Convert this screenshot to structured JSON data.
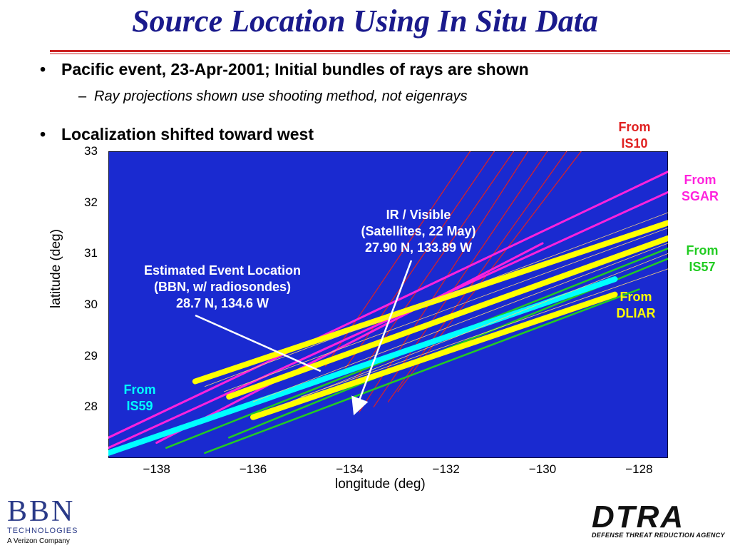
{
  "title": "Source Location Using In Situ Data",
  "bullets": {
    "b1": "Pacific event, 23-Apr-2001; Initial bundles of rays are shown",
    "b1_sub": "Ray projections shown use shooting method, not eigenrays",
    "b2": "Localization shifted toward west"
  },
  "labels": {
    "is10_1": "From",
    "is10_2": "IS10",
    "sgar_1": "From",
    "sgar_2": "SGAR",
    "is57_1": "From",
    "is57_2": "IS57",
    "dliar_1": "From",
    "dliar_2": "DLIAR",
    "is59_1": "From",
    "is59_2": "IS59"
  },
  "annotations": {
    "ir_1": "IR / Visible",
    "ir_2": "(Satellites, 22 May)",
    "ir_3": "27.90 N, 133.89 W",
    "est_1": "Estimated Event Location",
    "est_2": "(BBN, w/ radiosondes)",
    "est_3": "28.7 N, 134.6 W"
  },
  "logos": {
    "bbn": "BBN",
    "bbn_sub": "TECHNOLOGIES",
    "bbn_sub2": "A Verizon Company",
    "dtra": "DTRA",
    "dtra_sub": "DEFENSE THREAT REDUCTION AGENCY"
  },
  "colors": {
    "plot_bg": "#1a2ad0",
    "is10": "#e02020",
    "sgar": "#ff22dd",
    "is57": "#22cc22",
    "dliar": "#ffff00",
    "is59": "#00ffff",
    "title": "#1a1a8c"
  },
  "chart_data": {
    "type": "line",
    "xlabel": "longitude (deg)",
    "ylabel": "latitude (deg)",
    "xlim": [
      -139,
      -127.4
    ],
    "ylim": [
      27,
      33
    ],
    "xticks": [
      -138,
      -136,
      -134,
      -132,
      -130,
      -128
    ],
    "yticks": [
      28,
      29,
      30,
      31,
      32,
      33
    ],
    "series": [
      {
        "name": "IS10",
        "color": "#e02020",
        "width": 1.2,
        "lines": [
          [
            [
              -134.5,
              28.8
            ],
            [
              -131.5,
              33
            ]
          ],
          [
            [
              -134.2,
              28.6
            ],
            [
              -131,
              33
            ]
          ],
          [
            [
              -133.9,
              28.5
            ],
            [
              -130.6,
              33
            ]
          ],
          [
            [
              -133.8,
              27.9
            ],
            [
              -130.3,
              33
            ]
          ],
          [
            [
              -133.5,
              28
            ],
            [
              -129.9,
              33
            ]
          ],
          [
            [
              -133.2,
              28.1
            ],
            [
              -129.5,
              33
            ]
          ],
          [
            [
              -133,
              28.3
            ],
            [
              -129.2,
              33
            ]
          ]
        ]
      },
      {
        "name": "SGAR",
        "color": "#ff22dd",
        "width": 3,
        "lines": [
          [
            [
              -139,
              27.4
            ],
            [
              -127.4,
              32.6
            ]
          ],
          [
            [
              -139,
              27.2
            ],
            [
              -127.4,
              32.2
            ]
          ],
          [
            [
              -138,
              27.3
            ],
            [
              -130,
              31.2
            ]
          ]
        ]
      },
      {
        "name": "IS57",
        "color": "#22cc22",
        "width": 2.5,
        "lines": [
          [
            [
              -137.8,
              27.2
            ],
            [
              -127.4,
              31.1
            ]
          ],
          [
            [
              -136.5,
              27.4
            ],
            [
              -127.4,
              30.9
            ]
          ],
          [
            [
              -137,
              27.1
            ],
            [
              -128,
              30.3
            ]
          ]
        ]
      },
      {
        "name": "DLIAR",
        "color": "#ffff00",
        "width": 8,
        "lines": [
          [
            [
              -137.2,
              28.5
            ],
            [
              -127.4,
              31.6
            ]
          ],
          [
            [
              -136.5,
              28.2
            ],
            [
              -127.4,
              31.3
            ]
          ],
          [
            [
              -136,
              27.8
            ],
            [
              -128.5,
              30.2
            ]
          ]
        ]
      },
      {
        "name": "IS59",
        "color": "#00ffff",
        "width": 8,
        "lines": [
          [
            [
              -139,
              27.1
            ],
            [
              -128.5,
              30.5
            ]
          ]
        ]
      },
      {
        "name": "",
        "color": "#f5d27a",
        "width": 0.8,
        "lines": [
          [
            [
              -137,
              28.4
            ],
            [
              -127.4,
              31.8
            ]
          ],
          [
            [
              -136.6,
              28.3
            ],
            [
              -127.4,
              31.5
            ]
          ],
          [
            [
              -136,
              28.1
            ],
            [
              -127.4,
              31.2
            ]
          ],
          [
            [
              -135.5,
              28
            ],
            [
              -127.4,
              31
            ]
          ],
          [
            [
              -135,
              28.2
            ],
            [
              -127.4,
              30.7
            ]
          ]
        ]
      }
    ],
    "annotations": [
      {
        "label": "IR / Visible",
        "point": [
          -133.89,
          27.9
        ]
      },
      {
        "label": "Estimated Event Location",
        "point": [
          -134.6,
          28.7
        ]
      }
    ]
  }
}
